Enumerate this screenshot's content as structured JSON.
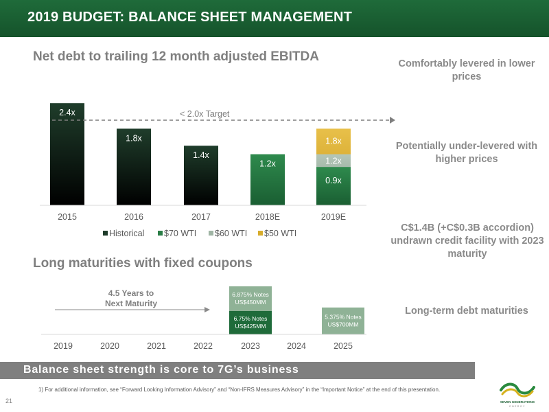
{
  "header": {
    "title": "2019 BUDGET: BALANCE SHEET MANAGEMENT"
  },
  "section1": {
    "title": "Net debt to trailing 12 month adjusted EBITDA"
  },
  "section2": {
    "title": "Long maturities with fixed coupons"
  },
  "notes": [
    "Comfortably levered in lower prices",
    "Potentially under-levered with higher prices",
    "C$1.4B (+C$0.3B accordion) undrawn credit facility with 2023 maturity",
    "Long-term debt maturities"
  ],
  "colors": {
    "header": "#1a5e32",
    "historical_top": "#1e3b2a",
    "wti70": "#2a7d46",
    "wti60": "#9fb4a4",
    "wti50": "#d7ac2c",
    "grey_text": "#7f7f7f"
  },
  "chart_data": [
    {
      "type": "bar",
      "categories": [
        "2015",
        "2016",
        "2017",
        "2018E",
        "2019E"
      ],
      "series": [
        {
          "name": "Historical",
          "values": [
            2.4,
            1.8,
            1.4,
            null,
            null
          ],
          "labels": [
            "2.4x",
            "1.8x",
            "1.4x",
            "",
            ""
          ]
        },
        {
          "name": "$70 WTI",
          "values": [
            null,
            null,
            null,
            1.2,
            0.9
          ],
          "labels": [
            "",
            "",
            "",
            "1.2x",
            "0.9x"
          ]
        },
        {
          "name": "$60 WTI",
          "values": [
            null,
            null,
            null,
            null,
            1.2
          ],
          "labels": [
            "",
            "",
            "",
            "",
            "1.2x"
          ]
        },
        {
          "name": "$50 WTI",
          "values": [
            null,
            null,
            null,
            null,
            1.8
          ],
          "labels": [
            "",
            "",
            "",
            "",
            "1.8x"
          ]
        }
      ],
      "annotations": {
        "target_line": 2.0,
        "target_label": "< 2.0x Target"
      },
      "legend_position": "bottom",
      "grid": false
    },
    {
      "type": "bar",
      "categories": [
        "2019",
        "2020",
        "2021",
        "2022",
        "2023",
        "2024",
        "2025"
      ],
      "bars": [
        {
          "year": "2023",
          "segments": [
            {
              "label": "6.75% Notes\nUS$425MM",
              "value": 425
            },
            {
              "label": "6.875% Notes\nUS$450MM",
              "value": 450
            }
          ]
        },
        {
          "year": "2025",
          "segments": [
            {
              "label": "5.375% Notes\nUS$700MM",
              "value": 700
            }
          ]
        }
      ],
      "annotation": "4.5 Years to Next Maturity"
    }
  ],
  "banner": {
    "text": "Balance sheet strength is core to 7G’s business"
  },
  "footnote": "1)  For additional information, see “Forward Looking Information Advisory” and “Non-IFRS Measures Advisory” in the “Important Notice” at the end of this presentation.",
  "page_number": "21",
  "logo": {
    "line1": "SEVEN GENERATIONS",
    "line2": "ENERGY"
  }
}
